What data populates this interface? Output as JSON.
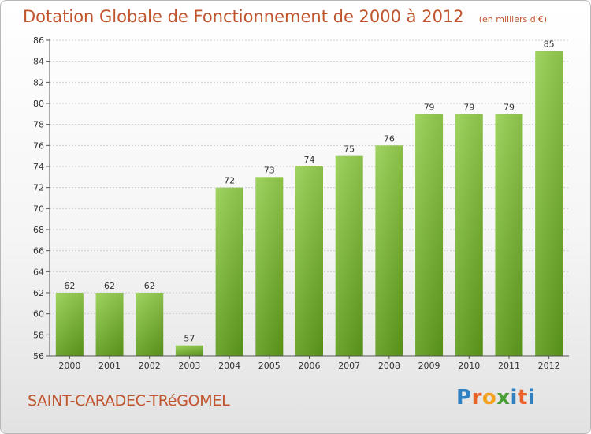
{
  "header": {
    "title": "Dotation Globale de Fonctionnement de 2000 à 2012",
    "unit": "(en milliers d'€)"
  },
  "footer": {
    "commune": "SAINT-CARADEC-TRéGOMEL",
    "logo_text": "Proxiti",
    "logo_colors": [
      "#2f7fc1",
      "#e8632a",
      "#f2a21a",
      "#4a9e35",
      "#2f7fc1",
      "#e8632a",
      "#2f7fc1"
    ]
  },
  "colors": {
    "title": "#c0542c",
    "bar_top": "#96cf50",
    "bar_bottom": "#5e9c1a",
    "grid": "#cfcfcf"
  },
  "chart_data": {
    "type": "bar",
    "title": "Dotation Globale de Fonctionnement de 2000 à 2012",
    "unit": "(en milliers d'€)",
    "categories": [
      "2000",
      "2001",
      "2002",
      "2003",
      "2004",
      "2005",
      "2006",
      "2007",
      "2008",
      "2009",
      "2010",
      "2011",
      "2012"
    ],
    "values": [
      62,
      62,
      62,
      57,
      72,
      73,
      74,
      75,
      76,
      79,
      79,
      79,
      85
    ],
    "ylim": [
      56,
      86
    ],
    "yticks": [
      56,
      58,
      60,
      62,
      64,
      66,
      68,
      70,
      72,
      74,
      76,
      78,
      80,
      82,
      84,
      86
    ],
    "grid": true,
    "data_labels": true
  }
}
